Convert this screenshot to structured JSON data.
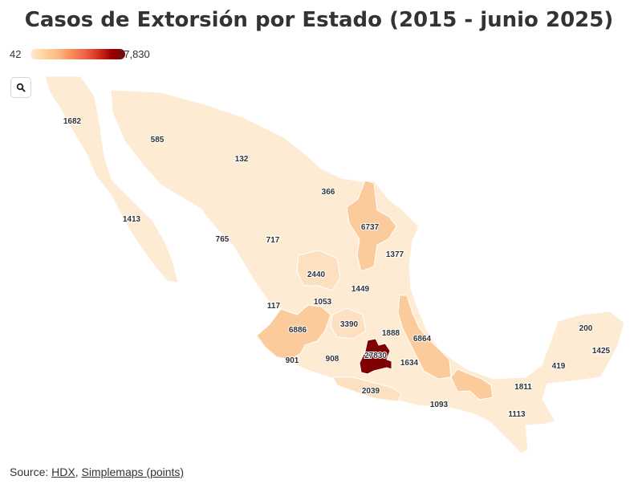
{
  "title": "Casos de Extorsión por Estado (2015 - junio 2025)",
  "legend": {
    "min": "42",
    "max": "27,830",
    "colors": [
      "#fdebd3",
      "#fdbb84",
      "#ef6548",
      "#990000",
      "#7f0000"
    ]
  },
  "search": {
    "icon": "search-icon"
  },
  "states": [
    {
      "value": "1682",
      "fill": "#fdebd3"
    },
    {
      "value": "585",
      "fill": "#fdebd3"
    },
    {
      "value": "132",
      "fill": "#fdebd3"
    },
    {
      "value": "366",
      "fill": "#fdebd3"
    },
    {
      "value": "1413",
      "fill": "#fdebd3"
    },
    {
      "value": "765",
      "fill": "#fdebd3"
    },
    {
      "value": "717",
      "fill": "#fdebd3"
    },
    {
      "value": "6737",
      "fill": "#fccb9c"
    },
    {
      "value": "1377",
      "fill": "#fdebd3"
    },
    {
      "value": "2440",
      "fill": "#fde0c0"
    },
    {
      "value": "1449",
      "fill": "#fdebd3"
    },
    {
      "value": "117",
      "fill": "#fdebd3"
    },
    {
      "value": "1053",
      "fill": "#fdebd3"
    },
    {
      "value": "3390",
      "fill": "#fde0c0"
    },
    {
      "value": "6886",
      "fill": "#fccb9c"
    },
    {
      "value": "1888",
      "fill": "#fdebd3"
    },
    {
      "value": "6864",
      "fill": "#fccb9c"
    },
    {
      "value": "901",
      "fill": "#fdebd3"
    },
    {
      "value": "908",
      "fill": "#fdebd3"
    },
    {
      "value": "27830",
      "fill": "#7f0000"
    },
    {
      "value": "1634",
      "fill": "#fdebd3"
    },
    {
      "value": "2039",
      "fill": "#fde0c0"
    },
    {
      "value": "1093",
      "fill": "#fdebd3"
    },
    {
      "value": "1811",
      "fill": "#fdebd3"
    },
    {
      "value": "1113",
      "fill": "#fdebd3"
    },
    {
      "value": "419",
      "fill": "#fdebd3"
    },
    {
      "value": "200",
      "fill": "#fdebd3"
    },
    {
      "value": "1425",
      "fill": "#fdebd3"
    }
  ],
  "source": {
    "prefix": "Source: ",
    "link1": "HDX",
    "sep": ", ",
    "link2": "Simplemaps (points)"
  }
}
